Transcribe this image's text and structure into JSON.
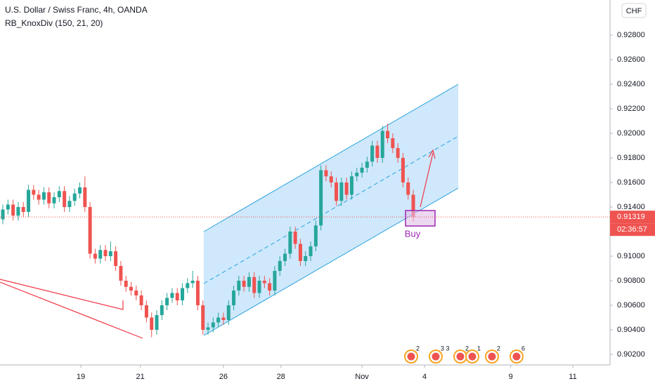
{
  "chart_data": {
    "type": "candlestick",
    "title": "U.S. Dollar / Swiss Franc, 4h, OANDA",
    "indicator": "RB_KnoxDiv (150, 21, 20)",
    "currency": "CHF",
    "countdown": "02:36:57",
    "annotation": "Buy",
    "up_color": "#26a69a",
    "down_color": "#ef5350",
    "grid": false,
    "open": [
      0.913,
      0.9138,
      0.9142,
      0.9133,
      0.914,
      0.9136,
      0.9154,
      0.915,
      0.9146,
      0.9152,
      0.9143,
      0.9148,
      0.9153,
      0.914,
      0.9145,
      0.9151,
      0.9156,
      0.914,
      0.9102,
      0.9098,
      0.9105,
      0.91,
      0.9104,
      0.9092,
      0.908,
      0.9075,
      0.9072,
      0.9068,
      0.906,
      0.905,
      0.904,
      0.9052,
      0.906,
      0.9066,
      0.907,
      0.9064,
      0.9074,
      0.9078,
      0.908,
      0.906,
      0.904,
      0.9042,
      0.9046,
      0.905,
      0.9048,
      0.906,
      0.9072,
      0.908,
      0.9075,
      0.9083,
      0.907,
      0.908,
      0.9078,
      0.9072,
      0.9088,
      0.9096,
      0.9102,
      0.912,
      0.911,
      0.9096,
      0.91,
      0.9108,
      0.9125,
      0.917,
      0.9165,
      0.916,
      0.9145,
      0.916,
      0.915,
      0.9165,
      0.9168,
      0.9172,
      0.9177,
      0.919,
      0.918,
      0.9202,
      0.9196,
      0.9188,
      0.918,
      0.916,
      0.915
    ],
    "high": [
      0.9142,
      0.9146,
      0.9146,
      0.9144,
      0.9144,
      0.9158,
      0.9158,
      0.9154,
      0.9156,
      0.9156,
      0.9152,
      0.9157,
      0.9157,
      0.9149,
      0.9155,
      0.916,
      0.9165,
      0.9144,
      0.9106,
      0.9109,
      0.9109,
      0.9112,
      0.9108,
      0.9096,
      0.9084,
      0.9079,
      0.9076,
      0.9072,
      0.9064,
      0.9054,
      0.9056,
      0.9064,
      0.907,
      0.9074,
      0.9074,
      0.9078,
      0.9082,
      0.9088,
      0.9084,
      0.9064,
      0.9046,
      0.905,
      0.9054,
      0.9054,
      0.9064,
      0.9076,
      0.9084,
      0.9084,
      0.9087,
      0.9087,
      0.9084,
      0.9084,
      0.9082,
      0.9092,
      0.91,
      0.9106,
      0.9124,
      0.9124,
      0.9114,
      0.9104,
      0.9112,
      0.9129,
      0.9174,
      0.9174,
      0.9169,
      0.9164,
      0.9164,
      0.9164,
      0.9169,
      0.9172,
      0.9176,
      0.9181,
      0.9194,
      0.9194,
      0.9206,
      0.9208,
      0.92,
      0.9192,
      0.9184,
      0.9164,
      0.9154
    ],
    "low": [
      0.9126,
      0.9134,
      0.9129,
      0.9129,
      0.9132,
      0.9132,
      0.9146,
      0.9142,
      0.9142,
      0.9139,
      0.9139,
      0.9144,
      0.9136,
      0.9136,
      0.9141,
      0.9147,
      0.9136,
      0.9098,
      0.9094,
      0.9094,
      0.9096,
      0.9096,
      0.9088,
      0.9076,
      0.9071,
      0.9068,
      0.9064,
      0.9056,
      0.9046,
      0.9034,
      0.9036,
      0.9048,
      0.9056,
      0.9062,
      0.906,
      0.906,
      0.907,
      0.9074,
      0.9056,
      0.9036,
      0.9036,
      0.9038,
      0.9042,
      0.9044,
      0.9044,
      0.9056,
      0.9068,
      0.9071,
      0.9071,
      0.9066,
      0.9066,
      0.9074,
      0.9068,
      0.9068,
      0.9084,
      0.9092,
      0.9098,
      0.9106,
      0.9092,
      0.9092,
      0.9096,
      0.9104,
      0.9121,
      0.9161,
      0.9156,
      0.9141,
      0.9141,
      0.9146,
      0.9146,
      0.9161,
      0.9164,
      0.9168,
      0.9173,
      0.9176,
      0.9176,
      0.9192,
      0.9184,
      0.9176,
      0.9156,
      0.9146,
      0.9128
    ],
    "close": [
      0.9138,
      0.9142,
      0.9133,
      0.914,
      0.9136,
      0.9154,
      0.915,
      0.9146,
      0.9152,
      0.9143,
      0.9148,
      0.9153,
      0.914,
      0.9145,
      0.9151,
      0.9156,
      0.914,
      0.9102,
      0.9098,
      0.9105,
      0.91,
      0.9104,
      0.9092,
      0.908,
      0.9075,
      0.9072,
      0.9068,
      0.906,
      0.905,
      0.904,
      0.9052,
      0.906,
      0.9066,
      0.907,
      0.9064,
      0.9074,
      0.9078,
      0.908,
      0.906,
      0.904,
      0.9042,
      0.9046,
      0.905,
      0.9048,
      0.906,
      0.9072,
      0.908,
      0.9075,
      0.9083,
      0.907,
      0.908,
      0.9078,
      0.9072,
      0.9088,
      0.9096,
      0.9102,
      0.912,
      0.911,
      0.9096,
      0.91,
      0.9108,
      0.9125,
      0.917,
      0.9165,
      0.916,
      0.9145,
      0.916,
      0.915,
      0.9165,
      0.9168,
      0.9172,
      0.9177,
      0.919,
      0.918,
      0.9202,
      0.9196,
      0.9188,
      0.918,
      0.916,
      0.915,
      0.91319
    ],
    "xlim": [
      -0.55,
      118.35
    ],
    "xticks": [
      {
        "value": 15.2,
        "label": "19"
      },
      {
        "value": 26.8,
        "label": "21"
      },
      {
        "value": 43,
        "label": "26"
      },
      {
        "value": 54.2,
        "label": "28"
      },
      {
        "value": 70,
        "label": "Nov"
      },
      {
        "value": 82.2,
        "label": "4"
      },
      {
        "value": 99,
        "label": "9"
      },
      {
        "value": 111.1,
        "label": "11"
      }
    ],
    "ylim": [
      0.90114,
      0.93086
    ],
    "yticks": [
      {
        "value": 0.902,
        "label": "0.90200"
      },
      {
        "value": 0.904,
        "label": "0.90400"
      },
      {
        "value": 0.906,
        "label": "0.90600"
      },
      {
        "value": 0.908,
        "label": "0.90800"
      },
      {
        "value": 0.91,
        "label": "0.91000"
      },
      {
        "value": 0.914,
        "label": "0.91400"
      },
      {
        "value": 0.916,
        "label": "0.91600"
      },
      {
        "value": 0.918,
        "label": "0.91800"
      },
      {
        "value": 0.92,
        "label": "0.92000"
      },
      {
        "value": 0.922,
        "label": "0.92200"
      },
      {
        "value": 0.924,
        "label": "0.92400"
      },
      {
        "value": 0.926,
        "label": "0.92600"
      },
      {
        "value": 0.928,
        "label": "0.92800"
      }
    ],
    "events": [
      "2",
      "3 3",
      "2",
      "1",
      "2",
      "6"
    ]
  }
}
